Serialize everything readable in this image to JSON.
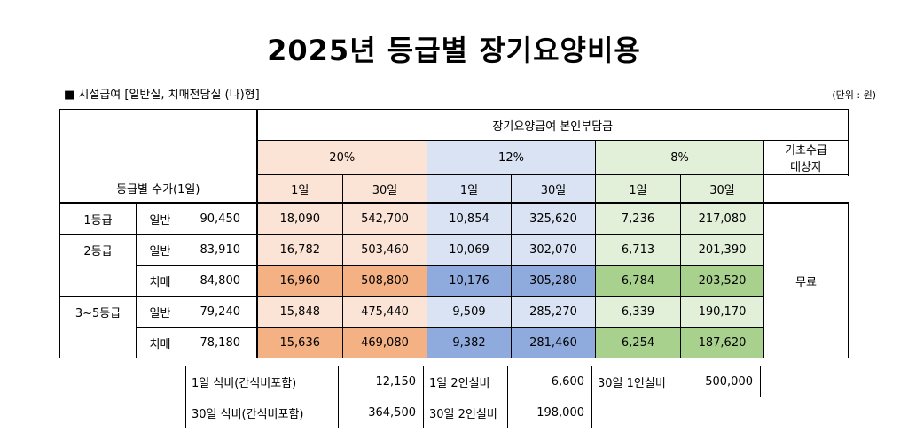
{
  "title": "2025년 등급별 장기요양비용",
  "subtitle": "■ 시설급여 [일반실, 치매전담실 (나)형]",
  "unit_note": "(단위 : 원)",
  "header": {
    "copay_group": "장기요양급여 본인부담금",
    "rate_20": "20%",
    "rate_12": "12%",
    "rate_8": "8%",
    "basic_recipient": "기초수급\n대상자",
    "fee_label": "등급별 수가(1일)",
    "day1": "1일",
    "day30": "30일"
  },
  "rows": [
    {
      "grade": "1등급",
      "type": "일반",
      "fee": "90,450",
      "c20_1": "18,090",
      "c20_30": "542,700",
      "c12_1": "10,854",
      "c12_30": "325,620",
      "c8_1": "7,236",
      "c8_30": "217,080"
    },
    {
      "grade": "2등급",
      "type": "일반",
      "fee": "83,910",
      "c20_1": "16,782",
      "c20_30": "503,460",
      "c12_1": "10,069",
      "c12_30": "302,070",
      "c8_1": "6,713",
      "c8_30": "201,390"
    },
    {
      "grade": "",
      "type": "치매",
      "fee": "84,800",
      "c20_1": "16,960",
      "c20_30": "508,800",
      "c12_1": "10,176",
      "c12_30": "305,280",
      "c8_1": "6,784",
      "c8_30": "203,520"
    },
    {
      "grade": "3~5등급",
      "type": "일반",
      "fee": "79,240",
      "c20_1": "15,848",
      "c20_30": "475,440",
      "c12_1": "9,509",
      "c12_30": "285,270",
      "c8_1": "6,339",
      "c8_30": "190,170"
    },
    {
      "grade": "",
      "type": "치매",
      "fee": "78,180",
      "c20_1": "15,636",
      "c20_30": "469,080",
      "c12_1": "9,382",
      "c12_30": "281,460",
      "c8_1": "6,254",
      "c8_30": "187,620"
    }
  ],
  "free_label": "무료",
  "extras": {
    "meal_1day_label": "1일 식비(간식비포함)",
    "meal_1day_value": "12,150",
    "room2_1day_label": "1일 2인실비",
    "room2_1day_value": "6,600",
    "room1_30day_label": "30일 1인실비",
    "room1_30day_value": "500,000",
    "meal_30day_label": "30일 식비(간식비포함)",
    "meal_30day_value": "364,500",
    "room2_30day_label": "30일 2인실비",
    "room2_30day_value": "198,000"
  }
}
